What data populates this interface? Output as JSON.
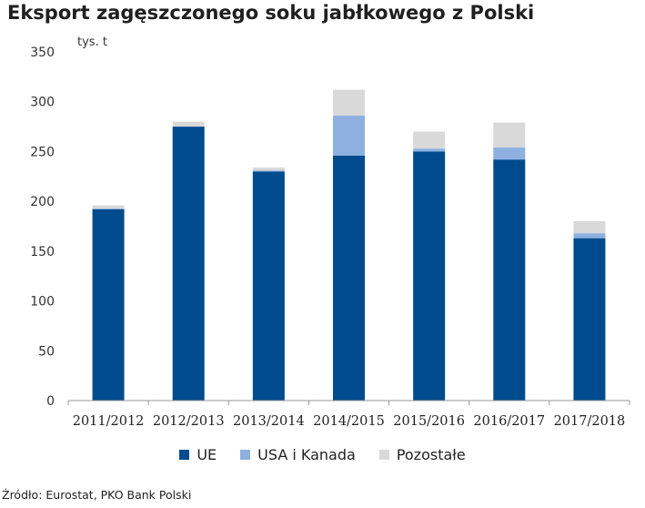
{
  "title": "Eksport zagęszczonego soku jabłkowego z Polski",
  "unit_label": "tys. t",
  "source": "Źródło: Eurostat, PKO Bank Polski",
  "colors": {
    "UE": "#004b8d",
    "USA i Kanada": "#8db0e0",
    "Pozostałe": "#d9d9d9",
    "axis": "#9a9a9a"
  },
  "chart_data": {
    "type": "bar",
    "stacked": true,
    "title": "Eksport zagęszczonego soku jabłkowego z Polski",
    "ylabel": "tys. t",
    "xlabel": "",
    "ylim": [
      0,
      350
    ],
    "yticks": [
      0,
      50,
      100,
      150,
      200,
      250,
      300,
      350
    ],
    "grid": false,
    "legend_position": "bottom",
    "categories": [
      "2011/2012",
      "2012/2013",
      "2013/2014",
      "2014/2015",
      "2015/2016",
      "2016/2017",
      "2017/2018"
    ],
    "series": [
      {
        "name": "UE",
        "values": [
          192,
          275,
          230,
          246,
          250,
          242,
          163
        ]
      },
      {
        "name": "USA i Kanada",
        "values": [
          1,
          0,
          1,
          40,
          3,
          12,
          5
        ]
      },
      {
        "name": "Pozostałe",
        "values": [
          3,
          5,
          3,
          26,
          17,
          25,
          12
        ]
      }
    ]
  }
}
